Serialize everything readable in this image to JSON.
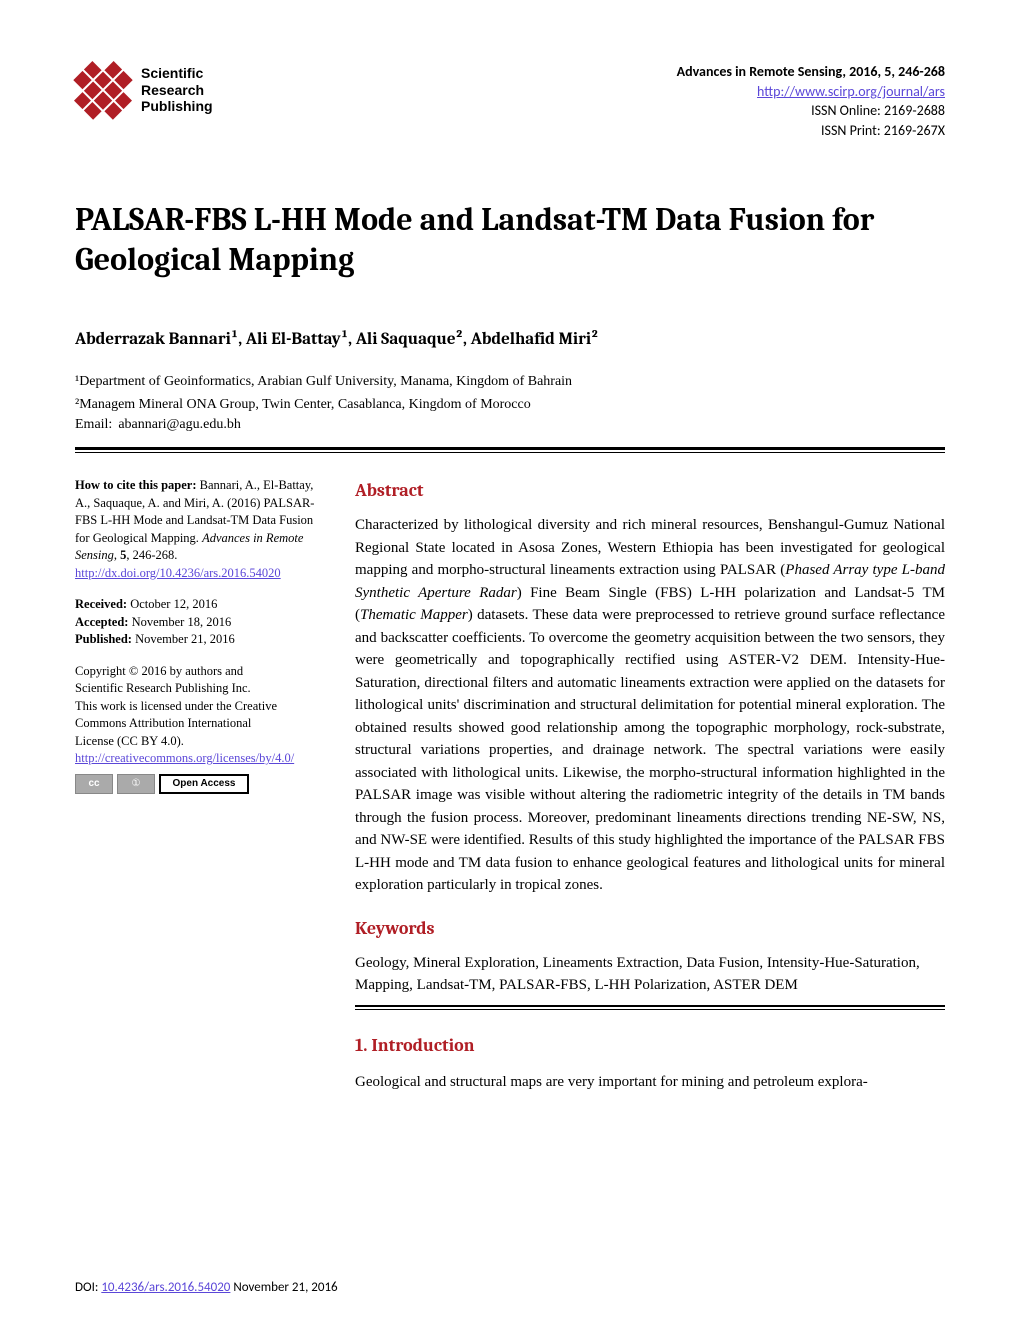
{
  "header": {
    "logo_text_line1": "Scientific",
    "logo_text_line2": "Research",
    "logo_text_line3": "Publishing",
    "logo_color": "#b01e25",
    "journal_title": "Advances in Remote Sensing, 2016, 5, 246-268",
    "journal_url": "http://www.scirp.org/journal/ars",
    "issn_online": "ISSN Online: 2169-2688",
    "issn_print": "ISSN Print: 2169-267X"
  },
  "article": {
    "title": "PALSAR-FBS L-HH Mode and Landsat-TM Data Fusion for Geological Mapping",
    "authors_html": "Abderrazak Bannari¹, Ali El-Battay¹, Ali Saquaque², Abdelhafid Miri²",
    "affil1": "¹Department of Geoinformatics, Arabian Gulf University, Manama, Kingdom of Bahrain",
    "affil2": "²Managem Mineral ONA Group, Twin Center, Casablanca, Kingdom of Morocco",
    "email_label": "Email:",
    "email": "abannari@agu.edu.bh"
  },
  "sidebar": {
    "cite_label": "How to cite this paper:",
    "cite_text": " Bannari, A., El-Battay, A., Saquaque, A. and Miri, A. (2016) PALSAR-FBS L-HH Mode and Landsat-TM Data Fusion for Geological Mapping. ",
    "cite_italic": "Advances in Remote Sensing",
    "cite_tail": ", ",
    "cite_vol": "5",
    "cite_pages": ", 246-268.",
    "doi_url": "http://dx.doi.org/10.4236/ars.2016.54020",
    "received_lbl": "Received:",
    "received": " October 12, 2016",
    "accepted_lbl": "Accepted:",
    "accepted": " November 18, 2016",
    "published_lbl": "Published:",
    "published": " November 21, 2016",
    "copyright1": "Copyright © 2016 by authors and",
    "copyright2": "Scientific Research Publishing Inc.",
    "copyright3": "This work is licensed under the Creative",
    "copyright4": "Commons Attribution International",
    "copyright5": "License (CC BY 4.0).",
    "cc_url": "http://creativecommons.org/licenses/by/4.0/",
    "badge_cc": "cc",
    "badge_by": "①",
    "badge_oa": "Open Access"
  },
  "main": {
    "abstract_heading": "Abstract",
    "abstract_p1a": "Characterized by lithological diversity and rich mineral resources, Benshangul-Gumuz National Regional State located in Asosa Zones, Western Ethiopia has been investigated for geological mapping and morpho-structural lineaments extraction using PALSAR (",
    "abstract_p1b": "Phased Array type L-band Synthetic Aperture Radar",
    "abstract_p1c": ") Fine Beam Single (FBS) L-HH polarization and Landsat-5 TM (",
    "abstract_p1d": "Thematic Mapper",
    "abstract_p1e": ") datasets. These data were preprocessed to retrieve ground surface reflectance and backscatter coefficients. To overcome the geometry acquisition between the two sensors, they were geometrically and topographically rectified using ASTER-V2 DEM. Intensity-Hue-Saturation, directional filters and automatic lineaments extraction were applied on the datasets for lithological units' discrimination and structural delimitation for potential mineral exploration. The obtained results showed good relationship among the topographic morphology, rock-substrate, structural variations properties, and drainage network. The spectral variations were easily associated with lithological units. Likewise, the morpho-structural information highlighted in the PALSAR image was visible without altering the radiometric integrity of the details in TM bands through the fusion process. Moreover, predominant lineaments directions trending NE-SW, NS, and NW-SE were identified. Results of this study highlighted the importance of the PALSAR FBS L-HH mode and TM data fusion to enhance geological features and lithological units for mineral exploration particularly in tropical zones.",
    "keywords_heading": "Keywords",
    "keywords_text": "Geology, Mineral Exploration, Lineaments Extraction, Data Fusion, Intensity-Hue-Saturation, Mapping, Landsat-TM, PALSAR-FBS, L-HH Polarization, ASTER DEM",
    "intro_heading": "1. Introduction",
    "intro_text": "Geological and structural maps are very important for mining and petroleum explora-"
  },
  "footer": {
    "doi_label": "DOI: ",
    "doi_link": "10.4236/ars.2016.54020",
    "date": "   November 21, 2016"
  },
  "colors": {
    "accent": "#b01e25",
    "link": "#5b47d8",
    "text": "#000000",
    "background": "#ffffff"
  }
}
